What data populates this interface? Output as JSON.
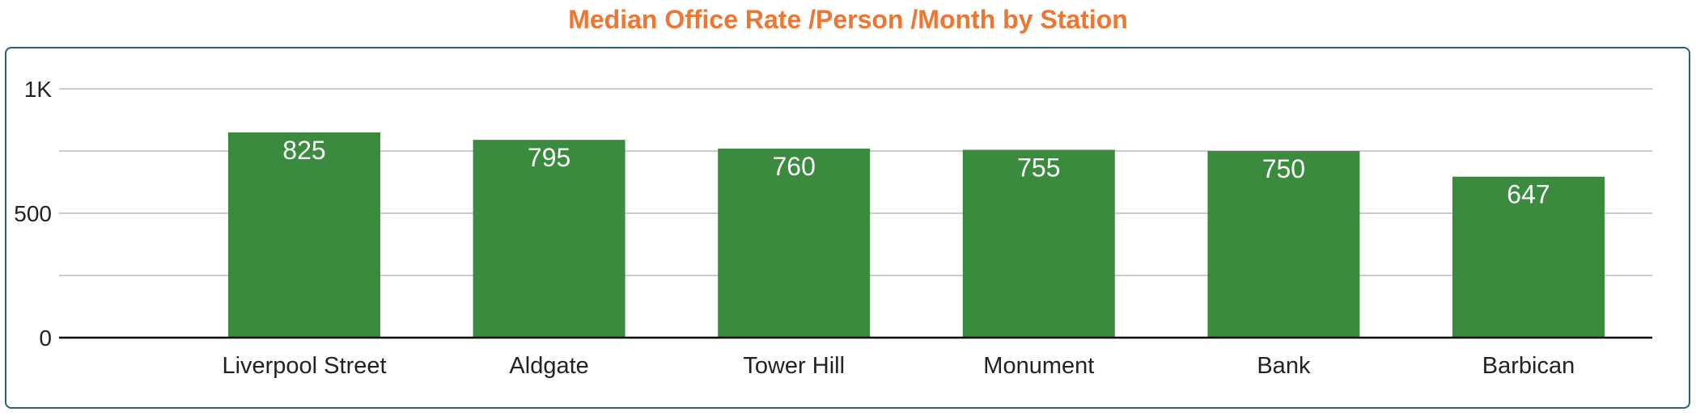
{
  "chart_data": {
    "type": "bar",
    "title": "Median Office Rate /Person /Month by Station",
    "xlabel": "",
    "ylabel": "",
    "categories": [
      "Liverpool Street",
      "Aldgate",
      "Tower Hill",
      "Monument",
      "Bank",
      "Barbican"
    ],
    "values": [
      825,
      795,
      760,
      755,
      750,
      647
    ],
    "data_labels": [
      "825",
      "795",
      "760",
      "755",
      "750",
      "647"
    ],
    "ylim": [
      0,
      1000
    ],
    "yticks": [
      {
        "value": 0,
        "label": "0"
      },
      {
        "value": 500,
        "label": "500"
      },
      {
        "value": 1000,
        "label": "1K"
      }
    ],
    "minor_gridlines": [
      250,
      750
    ],
    "grid": true,
    "legend": "none",
    "colors": {
      "title": "#ee7633",
      "bar": "#3b8b3e",
      "frame": "#2f5f73",
      "grid": "#cccccc",
      "axis": "#000000"
    }
  }
}
